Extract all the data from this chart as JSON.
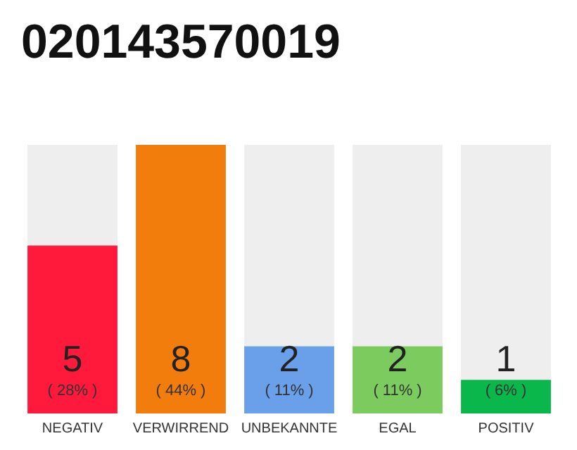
{
  "chart_data": {
    "type": "bar",
    "title": "020143570019",
    "categories": [
      "NEGATIV",
      "VERWIRREND",
      "UNBEKANNTE",
      "EGAL",
      "POSITIV"
    ],
    "values": [
      5,
      8,
      2,
      2,
      1
    ],
    "colors": [
      "#ff1a3c",
      "#f27d0c",
      "#6aa0ea",
      "#7ccb5e",
      "#0ab74a"
    ],
    "value_labels": [
      "5\n( 28% )",
      "8\n( 44% )",
      "2\n( 11% )",
      "2\n( 11% )",
      "1\n( 6% )"
    ]
  }
}
